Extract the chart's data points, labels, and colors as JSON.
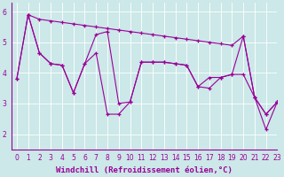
{
  "xlabel": "Windchill (Refroidissement éolien,°C)",
  "background_color": "#cce8e8",
  "line_color": "#990099",
  "marker": "+",
  "xlim": [
    -0.5,
    23
  ],
  "ylim": [
    1.5,
    6.3
  ],
  "yticks": [
    2,
    3,
    4,
    5,
    6
  ],
  "xticks": [
    0,
    1,
    2,
    3,
    4,
    5,
    6,
    7,
    8,
    9,
    10,
    11,
    12,
    13,
    14,
    15,
    16,
    17,
    18,
    19,
    20,
    21,
    22,
    23
  ],
  "line1_x": [
    1,
    2,
    3,
    4,
    5,
    6,
    7,
    8,
    9,
    10,
    11,
    12,
    13,
    14,
    15,
    16,
    17,
    18,
    19,
    20,
    21,
    22,
    23
  ],
  "line1_y": [
    5.9,
    5.75,
    5.7,
    5.65,
    5.6,
    5.55,
    5.5,
    5.45,
    5.4,
    5.35,
    5.3,
    5.25,
    5.2,
    5.15,
    5.1,
    5.05,
    5.0,
    4.95,
    4.9,
    5.2,
    3.2,
    2.65,
    3.05
  ],
  "line2_x": [
    0,
    1,
    2,
    3,
    4,
    5,
    6,
    7,
    8,
    9,
    10,
    11,
    12,
    13,
    14,
    15,
    16,
    17,
    18,
    19,
    20,
    21,
    22,
    23
  ],
  "line2_y": [
    3.8,
    5.9,
    4.65,
    4.3,
    4.25,
    3.35,
    4.3,
    5.25,
    5.35,
    3.0,
    3.05,
    4.35,
    4.35,
    4.35,
    4.3,
    4.25,
    3.55,
    3.85,
    3.85,
    3.95,
    5.2,
    3.2,
    2.65,
    3.05
  ],
  "line3_x": [
    0,
    1,
    2,
    3,
    4,
    5,
    6,
    7,
    8,
    9,
    10,
    11,
    12,
    13,
    14,
    15,
    16,
    17,
    18,
    19,
    20,
    21,
    22,
    23
  ],
  "line3_y": [
    3.8,
    5.9,
    4.65,
    4.3,
    4.25,
    3.35,
    4.3,
    4.65,
    2.65,
    2.65,
    3.05,
    4.35,
    4.35,
    4.35,
    4.3,
    4.25,
    3.55,
    3.5,
    3.85,
    3.95,
    3.95,
    3.2,
    2.15,
    3.05
  ],
  "grid_color": "#ffffff",
  "font_color": "#990099",
  "tick_fontsize": 5.5,
  "label_fontsize": 6.5
}
